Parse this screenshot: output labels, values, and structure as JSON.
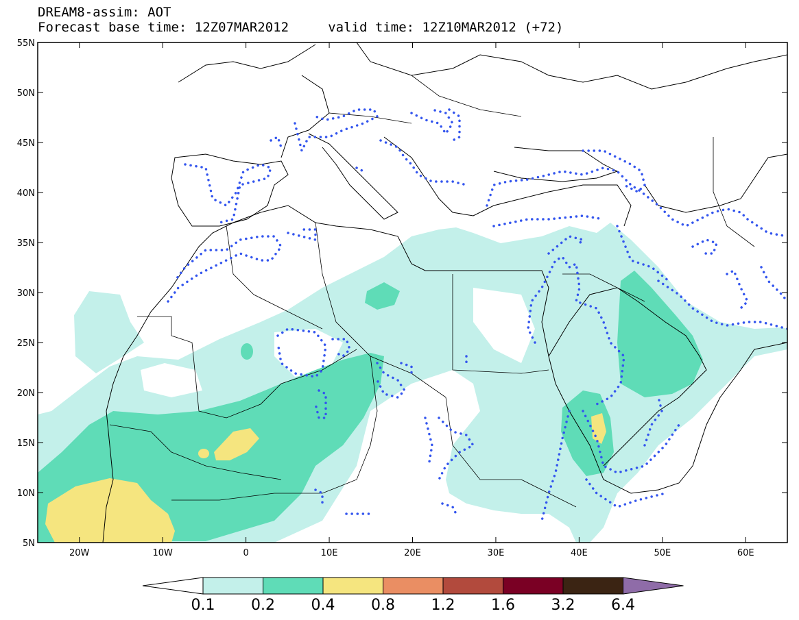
{
  "header": {
    "line1": "DREAM8-assim: AOT",
    "line2": "Forecast base time: 12Z07MAR2012     valid time: 12Z10MAR2012 (+72)"
  },
  "map": {
    "lon_range": [
      -25,
      65
    ],
    "lat_range": [
      5,
      55
    ],
    "lat_ticks": [
      {
        "lat": 55,
        "label": "55N"
      },
      {
        "lat": 50,
        "label": "50N"
      },
      {
        "lat": 45,
        "label": "45N"
      },
      {
        "lat": 40,
        "label": "40N"
      },
      {
        "lat": 35,
        "label": "35N"
      },
      {
        "lat": 30,
        "label": "30N"
      },
      {
        "lat": 25,
        "label": "25N"
      },
      {
        "lat": 20,
        "label": "20N"
      },
      {
        "lat": 15,
        "label": "15N"
      },
      {
        "lat": 10,
        "label": "10N"
      },
      {
        "lat": 5,
        "label": "5N"
      }
    ],
    "lon_ticks": [
      {
        "lon": -20,
        "label": "20W"
      },
      {
        "lon": -10,
        "label": "10W"
      },
      {
        "lon": 0,
        "label": "0"
      },
      {
        "lon": 10,
        "label": "10E"
      },
      {
        "lon": 20,
        "label": "20E"
      },
      {
        "lon": 30,
        "label": "30E"
      },
      {
        "lon": 40,
        "label": "40E"
      },
      {
        "lon": 50,
        "label": "50E"
      },
      {
        "lon": 60,
        "label": "60E"
      }
    ]
  },
  "colorbar": {
    "colors": [
      "#ffffff",
      "#c3f0ea",
      "#5fdcb7",
      "#f5e57f",
      "#ea8e63",
      "#b24a3d",
      "#7a0024",
      "#3b2413",
      "#8f6ca8"
    ],
    "labels": [
      "0.1",
      "0.2",
      "0.4",
      "0.8",
      "1.2",
      "1.6",
      "3.2",
      "6.4"
    ]
  },
  "contour_color": "#3355ee"
}
